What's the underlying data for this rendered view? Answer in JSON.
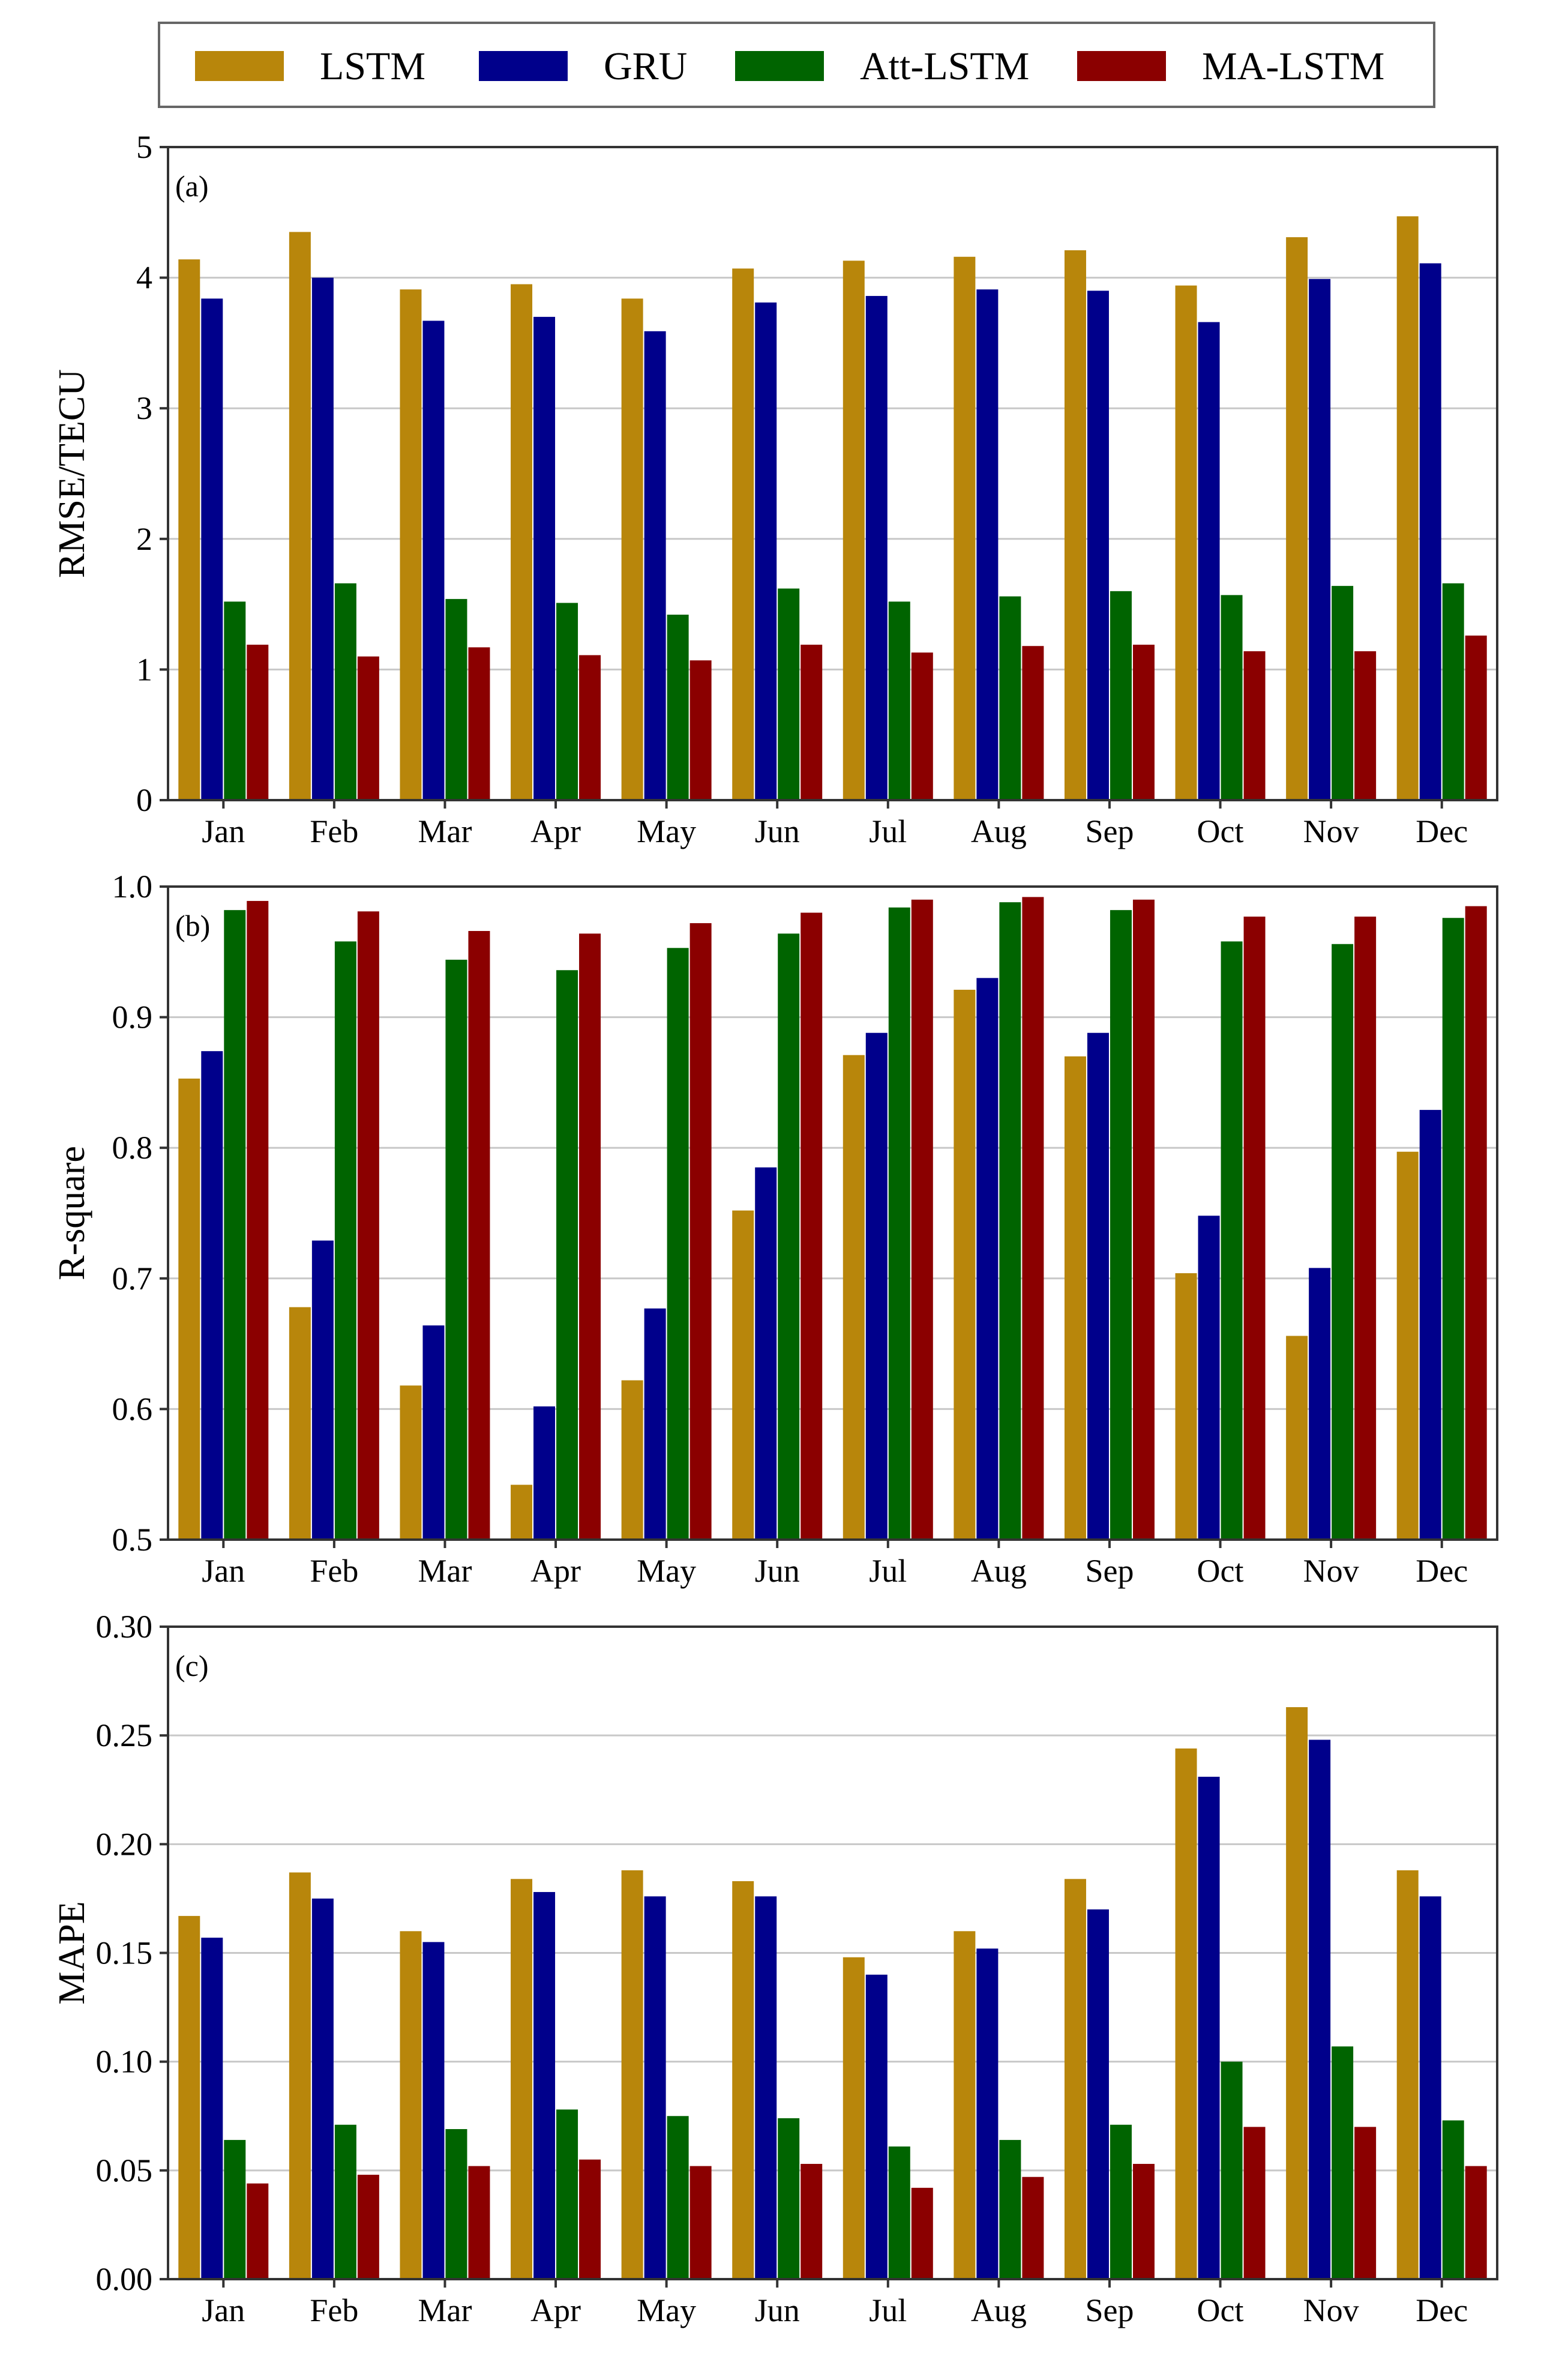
{
  "legend": {
    "entries": [
      {
        "label": "LSTM",
        "color": "#b8860b"
      },
      {
        "label": "GRU",
        "color": "#00008b"
      },
      {
        "label": "Att-LSTM",
        "color": "#006400"
      },
      {
        "label": "MA-LSTM",
        "color": "#8b0000"
      }
    ]
  },
  "chart_data": [
    {
      "type": "bar",
      "panel_label": "(a)",
      "title": "",
      "xlabel": "",
      "ylabel": "RMSE/TECU",
      "ylim": [
        0,
        5
      ],
      "yticks": [
        0,
        1,
        2,
        3,
        4,
        5
      ],
      "ytick_labels": [
        "0",
        "1",
        "2",
        "3",
        "4",
        "5"
      ],
      "grid": true,
      "categories": [
        "Jan",
        "Feb",
        "Mar",
        "Apr",
        "May",
        "Jun",
        "Jul",
        "Aug",
        "Sep",
        "Oct",
        "Nov",
        "Dec"
      ],
      "series": [
        {
          "name": "LSTM",
          "color": "#b8860b",
          "values": [
            4.14,
            4.35,
            3.91,
            3.95,
            3.84,
            4.07,
            4.13,
            4.16,
            4.21,
            3.94,
            4.31,
            4.47
          ]
        },
        {
          "name": "GRU",
          "color": "#00008b",
          "values": [
            3.84,
            4.0,
            3.67,
            3.7,
            3.59,
            3.81,
            3.86,
            3.91,
            3.9,
            3.66,
            3.99,
            4.11
          ]
        },
        {
          "name": "Att-LSTM",
          "color": "#006400",
          "values": [
            1.52,
            1.66,
            1.54,
            1.51,
            1.42,
            1.62,
            1.52,
            1.56,
            1.6,
            1.57,
            1.64,
            1.66
          ]
        },
        {
          "name": "MA-LSTM",
          "color": "#8b0000",
          "values": [
            1.19,
            1.1,
            1.17,
            1.11,
            1.07,
            1.19,
            1.13,
            1.18,
            1.19,
            1.14,
            1.14,
            1.26
          ]
        }
      ]
    },
    {
      "type": "bar",
      "panel_label": "(b)",
      "title": "",
      "xlabel": "",
      "ylabel": "R-square",
      "ylim": [
        0.5,
        1.0
      ],
      "yticks": [
        0.5,
        0.6,
        0.7,
        0.8,
        0.9,
        1.0
      ],
      "ytick_labels": [
        "0.5",
        "0.6",
        "0.7",
        "0.8",
        "0.9",
        "1.0"
      ],
      "grid": true,
      "categories": [
        "Jan",
        "Feb",
        "Mar",
        "Apr",
        "May",
        "Jun",
        "Jul",
        "Aug",
        "Sep",
        "Oct",
        "Nov",
        "Dec"
      ],
      "series": [
        {
          "name": "LSTM",
          "color": "#b8860b",
          "values": [
            0.853,
            0.678,
            0.618,
            0.542,
            0.622,
            0.752,
            0.871,
            0.921,
            0.87,
            0.704,
            0.656,
            0.797
          ]
        },
        {
          "name": "GRU",
          "color": "#00008b",
          "values": [
            0.874,
            0.729,
            0.664,
            0.602,
            0.677,
            0.785,
            0.888,
            0.93,
            0.888,
            0.748,
            0.708,
            0.829
          ]
        },
        {
          "name": "Att-LSTM",
          "color": "#006400",
          "values": [
            0.982,
            0.958,
            0.944,
            0.936,
            0.953,
            0.964,
            0.984,
            0.988,
            0.982,
            0.958,
            0.956,
            0.976
          ]
        },
        {
          "name": "MA-LSTM",
          "color": "#8b0000",
          "values": [
            0.989,
            0.981,
            0.966,
            0.964,
            0.972,
            0.98,
            0.99,
            0.992,
            0.99,
            0.977,
            0.977,
            0.985
          ]
        }
      ]
    },
    {
      "type": "bar",
      "panel_label": "(c)",
      "title": "",
      "xlabel": "",
      "ylabel": "MAPE",
      "ylim": [
        0,
        0.3
      ],
      "yticks": [
        0,
        0.05,
        0.1,
        0.15,
        0.2,
        0.25,
        0.3
      ],
      "ytick_labels": [
        "0.00",
        "0.05",
        "0.10",
        "0.15",
        "0.20",
        "0.25",
        "0.30"
      ],
      "grid": true,
      "categories": [
        "Jan",
        "Feb",
        "Mar",
        "Apr",
        "May",
        "Jun",
        "Jul",
        "Aug",
        "Sep",
        "Oct",
        "Nov",
        "Dec"
      ],
      "series": [
        {
          "name": "LSTM",
          "color": "#b8860b",
          "values": [
            0.167,
            0.187,
            0.16,
            0.184,
            0.188,
            0.183,
            0.148,
            0.16,
            0.184,
            0.244,
            0.263,
            0.188
          ]
        },
        {
          "name": "GRU",
          "color": "#00008b",
          "values": [
            0.157,
            0.175,
            0.155,
            0.178,
            0.176,
            0.176,
            0.14,
            0.152,
            0.17,
            0.231,
            0.248,
            0.176
          ]
        },
        {
          "name": "Att-LSTM",
          "color": "#006400",
          "values": [
            0.064,
            0.071,
            0.069,
            0.078,
            0.075,
            0.074,
            0.061,
            0.064,
            0.071,
            0.1,
            0.107,
            0.073
          ]
        },
        {
          "name": "MA-LSTM",
          "color": "#8b0000",
          "values": [
            0.044,
            0.048,
            0.052,
            0.055,
            0.052,
            0.053,
            0.042,
            0.047,
            0.053,
            0.07,
            0.07,
            0.052
          ]
        }
      ]
    }
  ]
}
